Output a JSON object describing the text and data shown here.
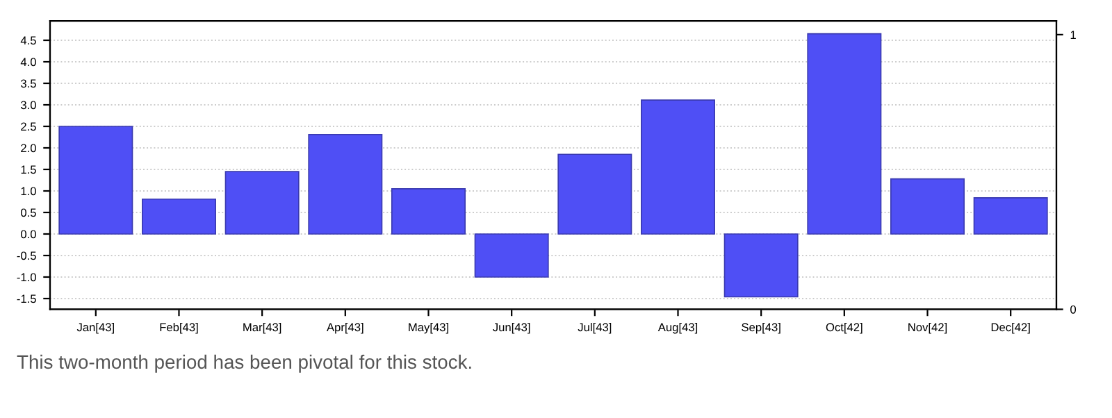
{
  "chart_data": {
    "type": "bar",
    "categories": [
      "Jan[43]",
      "Feb[43]",
      "Mar[43]",
      "Apr[43]",
      "May[43]",
      "Jun[43]",
      "Jul[43]",
      "Aug[43]",
      "Sep[43]",
      "Oct[42]",
      "Nov[42]",
      "Dec[42]"
    ],
    "values": [
      2.5,
      0.81,
      1.45,
      2.31,
      1.05,
      -1.0,
      1.85,
      3.11,
      -1.46,
      4.65,
      1.28,
      0.84
    ],
    "color": "#4f4ff5",
    "ylim": [
      -1.75,
      4.95
    ],
    "yticks": [
      {
        "value": -1.5,
        "label": "-1.5"
      },
      {
        "value": -1.0,
        "label": "-1.0"
      },
      {
        "value": -0.5,
        "label": "-0.5"
      },
      {
        "value": 0.0,
        "label": "0.0"
      },
      {
        "value": 0.5,
        "label": "0.5"
      },
      {
        "value": 1.0,
        "label": "1.0"
      },
      {
        "value": 1.5,
        "label": "1.5"
      },
      {
        "value": 2.0,
        "label": "2.0"
      },
      {
        "value": 2.5,
        "label": "2.5"
      },
      {
        "value": 3.0,
        "label": "3.0"
      },
      {
        "value": 3.5,
        "label": "3.5"
      },
      {
        "value": 4.0,
        "label": "4.0"
      },
      {
        "value": 4.5,
        "label": "4.5"
      }
    ],
    "y2lim": [
      0,
      1.05
    ],
    "y2ticks": [
      0,
      1
    ],
    "grid": "y",
    "annotations": [
      "This two-month period has been pivotal for this stock."
    ]
  }
}
